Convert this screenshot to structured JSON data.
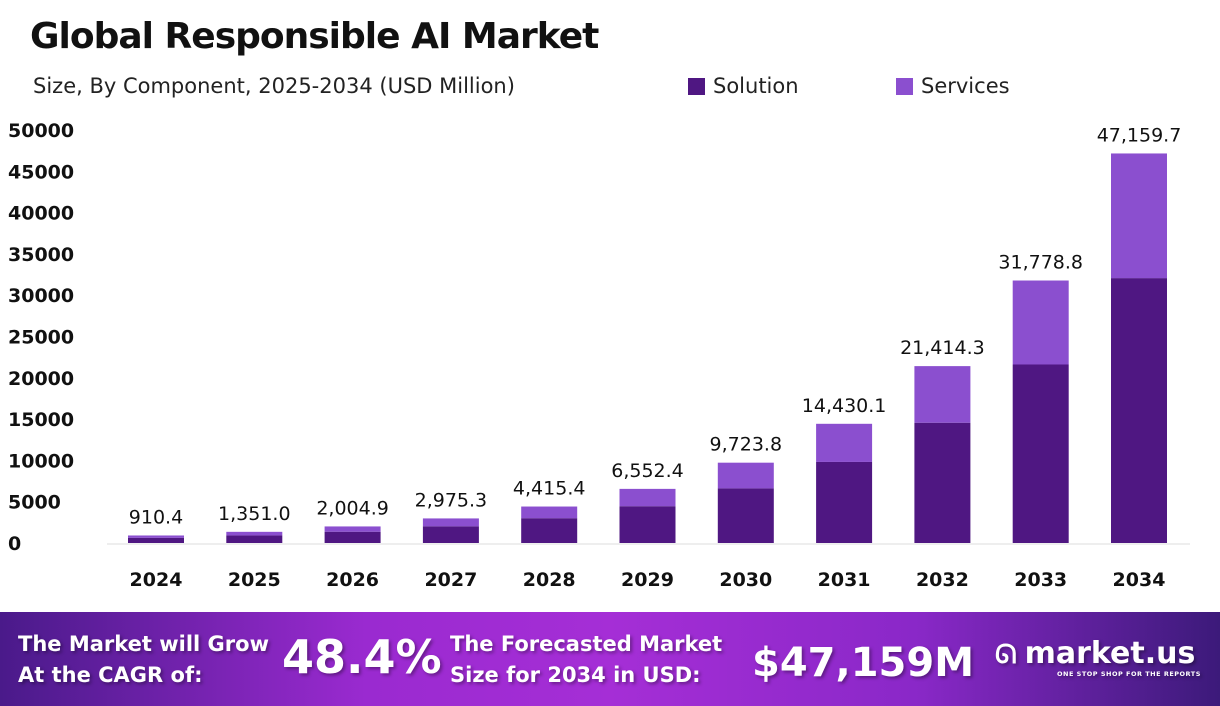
{
  "chart_data": {
    "type": "bar",
    "stacked": true,
    "title": "Global Responsible AI Market",
    "subtitle": "Size, By Component, 2025-2034 (USD Million)",
    "categories": [
      "2024",
      "2025",
      "2026",
      "2027",
      "2028",
      "2029",
      "2030",
      "2031",
      "2032",
      "2033",
      "2034"
    ],
    "series": [
      {
        "name": "Solution",
        "color": "#4f1782",
        "values": [
          619.1,
          918.7,
          1363.3,
          2023.2,
          3002.5,
          4455.6,
          6612.2,
          9812.5,
          14561.7,
          21609.6,
          32068.6
        ]
      },
      {
        "name": "Services",
        "color": "#8b4fcf",
        "values": [
          291.3,
          432.3,
          641.6,
          952.1,
          1412.9,
          2096.8,
          3111.6,
          4617.6,
          6852.6,
          10169.2,
          15091.1
        ]
      }
    ],
    "totals_labels": [
      "910.4",
      "1,351.0",
      "2,004.9",
      "2,975.3",
      "4,415.4",
      "6,552.4",
      "9,723.8",
      "14,430.1",
      "21,414.3",
      "31,778.8",
      "47,159.7"
    ],
    "yticks": [
      "0",
      "5000",
      "10000",
      "15000",
      "20000",
      "25000",
      "30000",
      "35000",
      "40000",
      "45000",
      "50000"
    ],
    "ylim": [
      0,
      50000
    ],
    "grid": false,
    "legend_position": "top"
  },
  "banner": {
    "cagr_text_1": "The Market will Grow",
    "cagr_text_2": "At the CAGR of:",
    "cagr_value": "48.4%",
    "forecast_text_1": "The Forecasted Market",
    "forecast_text_2": "Size for 2034 in USD:",
    "forecast_value": "$47,159M",
    "brand": "market.us",
    "tagline": "ONE STOP SHOP FOR THE REPORTS"
  }
}
